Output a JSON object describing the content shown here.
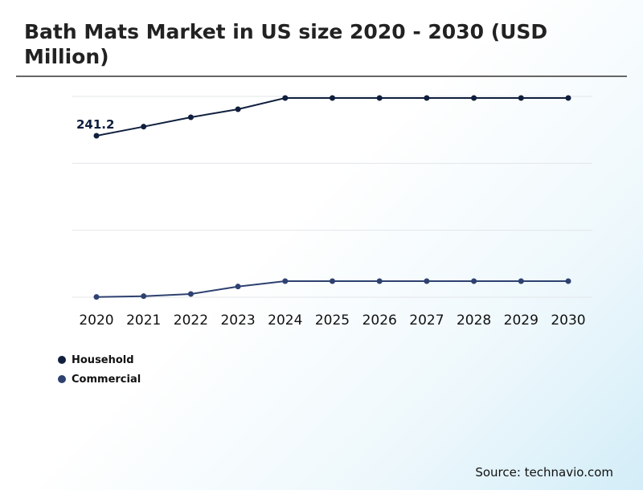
{
  "page": {
    "title": "Bath Mats Market in US size 2020 - 2030 (USD Million)",
    "source": "Source: technavio.com"
  },
  "chart_data": {
    "type": "line",
    "title": "Bath Mats Market in US size 2020 - 2030 (USD Million)",
    "xlabel": "",
    "ylabel": "",
    "x": [
      "2020",
      "2021",
      "2022",
      "2023",
      "2024",
      "2025",
      "2026",
      "2027",
      "2028",
      "2029",
      "2030"
    ],
    "ylim": [
      0,
      300
    ],
    "grid": true,
    "legend_position": "bottom-left",
    "series": [
      {
        "name": "Household",
        "color": "#0f1f3d",
        "values": [
          241.2,
          254.8,
          268.8,
          280.8,
          297.6,
          297.6,
          297.6,
          297.6,
          297.6,
          297.6,
          297.6
        ]
      },
      {
        "name": "Commercial",
        "color": "#2e4170",
        "values": [
          0.4,
          1.6,
          4.8,
          16,
          24,
          24,
          24,
          24,
          24,
          24,
          24
        ]
      }
    ],
    "annotations": [
      {
        "series": 0,
        "index": 0,
        "text": "241.2"
      }
    ]
  }
}
